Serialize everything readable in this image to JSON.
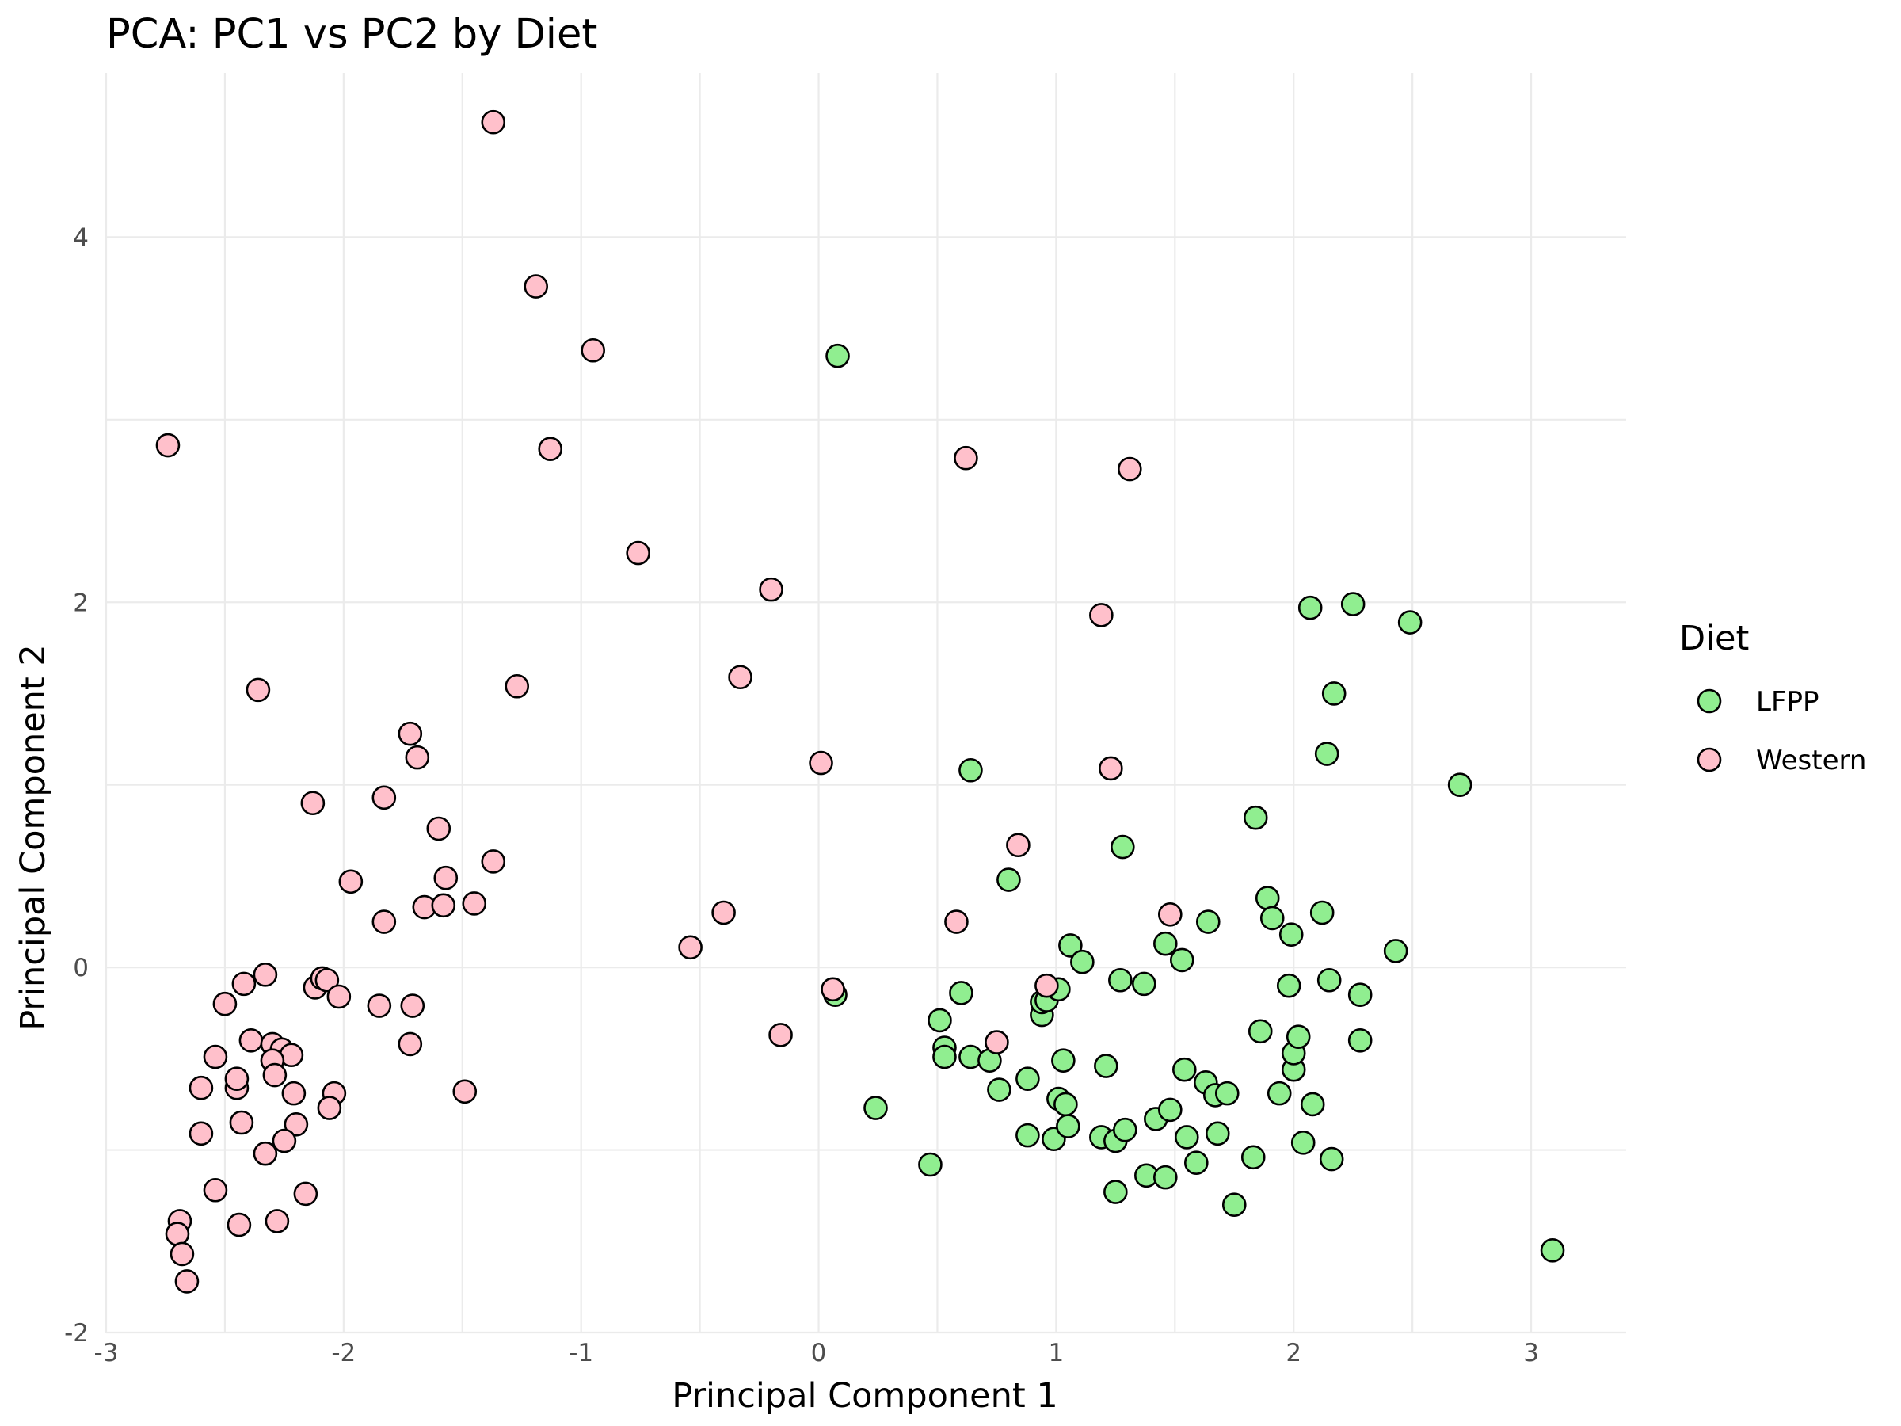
{
  "chart_data": {
    "type": "scatter",
    "title": "PCA: PC1 vs PC2 by Diet",
    "xlabel": "Principal Component 1",
    "ylabel": "Principal Component 2",
    "xlim": [
      -3,
      3.4
    ],
    "ylim": [
      -2,
      4.9
    ],
    "x_ticks": [
      -3,
      -2,
      -1,
      0,
      1,
      2,
      3
    ],
    "x_tick_labels": [
      "-3",
      "-2",
      "-1",
      "0",
      "1",
      "2",
      "3"
    ],
    "y_ticks": [
      -2,
      0,
      2,
      4
    ],
    "y_tick_labels": [
      "-2",
      "0",
      "2",
      "4"
    ],
    "grid": true,
    "legend": {
      "title": "Diet",
      "placement": "right",
      "entries": [
        {
          "label": "LFPP",
          "color": "#90ee90"
        },
        {
          "label": "Western",
          "color": "#ffc0cb"
        }
      ]
    },
    "series": [
      {
        "name": "LFPP",
        "color": "#90ee90",
        "points": [
          [
            0.08,
            3.35
          ],
          [
            0.64,
            1.08
          ],
          [
            0.24,
            -0.77
          ],
          [
            0.47,
            -1.08
          ],
          [
            0.07,
            -0.15
          ],
          [
            0.51,
            -0.29
          ],
          [
            0.53,
            -0.44
          ],
          [
            0.53,
            -0.49
          ],
          [
            0.6,
            -0.14
          ],
          [
            0.64,
            -0.49
          ],
          [
            0.72,
            -0.51
          ],
          [
            0.76,
            -0.67
          ],
          [
            0.8,
            0.48
          ],
          [
            0.88,
            -0.61
          ],
          [
            0.88,
            -0.92
          ],
          [
            0.94,
            -0.26
          ],
          [
            0.94,
            -0.19
          ],
          [
            0.96,
            -0.18
          ],
          [
            1.01,
            -0.12
          ],
          [
            1.01,
            -0.72
          ],
          [
            0.99,
            -0.94
          ],
          [
            1.03,
            -0.51
          ],
          [
            1.04,
            -0.75
          ],
          [
            1.05,
            -0.87
          ],
          [
            1.06,
            0.12
          ],
          [
            1.11,
            0.03
          ],
          [
            1.19,
            -0.93
          ],
          [
            1.21,
            -0.54
          ],
          [
            1.25,
            -1.23
          ],
          [
            1.25,
            -0.95
          ],
          [
            1.27,
            -0.07
          ],
          [
            1.28,
            0.66
          ],
          [
            1.29,
            -0.89
          ],
          [
            1.37,
            -0.09
          ],
          [
            1.38,
            -1.14
          ],
          [
            1.42,
            -0.83
          ],
          [
            1.46,
            -1.15
          ],
          [
            1.46,
            0.13
          ],
          [
            1.48,
            -0.78
          ],
          [
            1.53,
            0.04
          ],
          [
            1.54,
            -0.56
          ],
          [
            1.55,
            -0.93
          ],
          [
            1.59,
            -1.07
          ],
          [
            1.63,
            -0.63
          ],
          [
            1.64,
            0.25
          ],
          [
            1.67,
            -0.7
          ],
          [
            1.68,
            -0.91
          ],
          [
            1.72,
            -0.69
          ],
          [
            1.75,
            -1.3
          ],
          [
            1.83,
            -1.04
          ],
          [
            1.84,
            0.82
          ],
          [
            1.86,
            -0.35
          ],
          [
            1.89,
            0.38
          ],
          [
            1.91,
            0.27
          ],
          [
            1.94,
            -0.69
          ],
          [
            1.98,
            -0.1
          ],
          [
            1.99,
            0.18
          ],
          [
            2.0,
            -0.56
          ],
          [
            2.0,
            -0.47
          ],
          [
            2.02,
            -0.38
          ],
          [
            2.04,
            -0.96
          ],
          [
            2.07,
            1.97
          ],
          [
            2.08,
            -0.75
          ],
          [
            2.12,
            0.3
          ],
          [
            2.14,
            1.17
          ],
          [
            2.15,
            -0.07
          ],
          [
            2.16,
            -1.05
          ],
          [
            2.17,
            1.5
          ],
          [
            2.25,
            1.99
          ],
          [
            2.28,
            -0.15
          ],
          [
            2.28,
            -0.4
          ],
          [
            2.43,
            0.09
          ],
          [
            2.49,
            1.89
          ],
          [
            2.7,
            1.0
          ],
          [
            3.09,
            -1.55
          ]
        ]
      },
      {
        "name": "Western",
        "color": "#ffc0cb",
        "points": [
          [
            -1.37,
            4.63
          ],
          [
            -1.19,
            3.73
          ],
          [
            -0.95,
            3.38
          ],
          [
            -2.74,
            2.86
          ],
          [
            -1.13,
            2.84
          ],
          [
            -0.76,
            2.27
          ],
          [
            -0.2,
            2.07
          ],
          [
            -0.33,
            1.59
          ],
          [
            -1.27,
            1.54
          ],
          [
            -2.36,
            1.52
          ],
          [
            -1.72,
            1.28
          ],
          [
            -1.69,
            1.15
          ],
          [
            0.62,
            2.79
          ],
          [
            1.31,
            2.73
          ],
          [
            1.19,
            1.93
          ],
          [
            0.01,
            1.12
          ],
          [
            1.23,
            1.09
          ],
          [
            -2.13,
            0.9
          ],
          [
            -1.83,
            0.93
          ],
          [
            -1.6,
            0.76
          ],
          [
            -1.37,
            0.58
          ],
          [
            -1.97,
            0.47
          ],
          [
            -1.57,
            0.49
          ],
          [
            -1.83,
            0.25
          ],
          [
            -1.66,
            0.33
          ],
          [
            -1.58,
            0.34
          ],
          [
            -1.45,
            0.35
          ],
          [
            0.84,
            0.67
          ],
          [
            -0.4,
            0.3
          ],
          [
            0.58,
            0.25
          ],
          [
            1.48,
            0.29
          ],
          [
            -0.54,
            0.11
          ],
          [
            -2.33,
            -0.04
          ],
          [
            -2.42,
            -0.09
          ],
          [
            -2.5,
            -0.2
          ],
          [
            -2.12,
            -0.11
          ],
          [
            -2.09,
            -0.06
          ],
          [
            -2.07,
            -0.07
          ],
          [
            -2.02,
            -0.16
          ],
          [
            -1.85,
            -0.21
          ],
          [
            -1.71,
            -0.21
          ],
          [
            -1.72,
            -0.42
          ],
          [
            0.06,
            -0.12
          ],
          [
            0.96,
            -0.1
          ],
          [
            -0.16,
            -0.37
          ],
          [
            0.75,
            -0.41
          ],
          [
            -2.39,
            -0.4
          ],
          [
            -2.3,
            -0.42
          ],
          [
            -2.26,
            -0.45
          ],
          [
            -2.22,
            -0.48
          ],
          [
            -2.54,
            -0.49
          ],
          [
            -2.3,
            -0.51
          ],
          [
            -2.6,
            -0.66
          ],
          [
            -2.45,
            -0.66
          ],
          [
            -2.45,
            -0.61
          ],
          [
            -2.29,
            -0.59
          ],
          [
            -2.21,
            -0.69
          ],
          [
            -2.04,
            -0.69
          ],
          [
            -2.06,
            -0.77
          ],
          [
            -1.49,
            -0.68
          ],
          [
            -2.6,
            -0.91
          ],
          [
            -2.43,
            -0.85
          ],
          [
            -2.2,
            -0.86
          ],
          [
            -2.25,
            -0.95
          ],
          [
            -2.33,
            -1.02
          ],
          [
            -2.54,
            -1.22
          ],
          [
            -2.16,
            -1.24
          ],
          [
            -2.44,
            -1.41
          ],
          [
            -2.28,
            -1.39
          ],
          [
            -2.69,
            -1.39
          ],
          [
            -2.7,
            -1.46
          ],
          [
            -2.68,
            -1.57
          ],
          [
            -2.66,
            -1.72
          ]
        ]
      }
    ]
  }
}
